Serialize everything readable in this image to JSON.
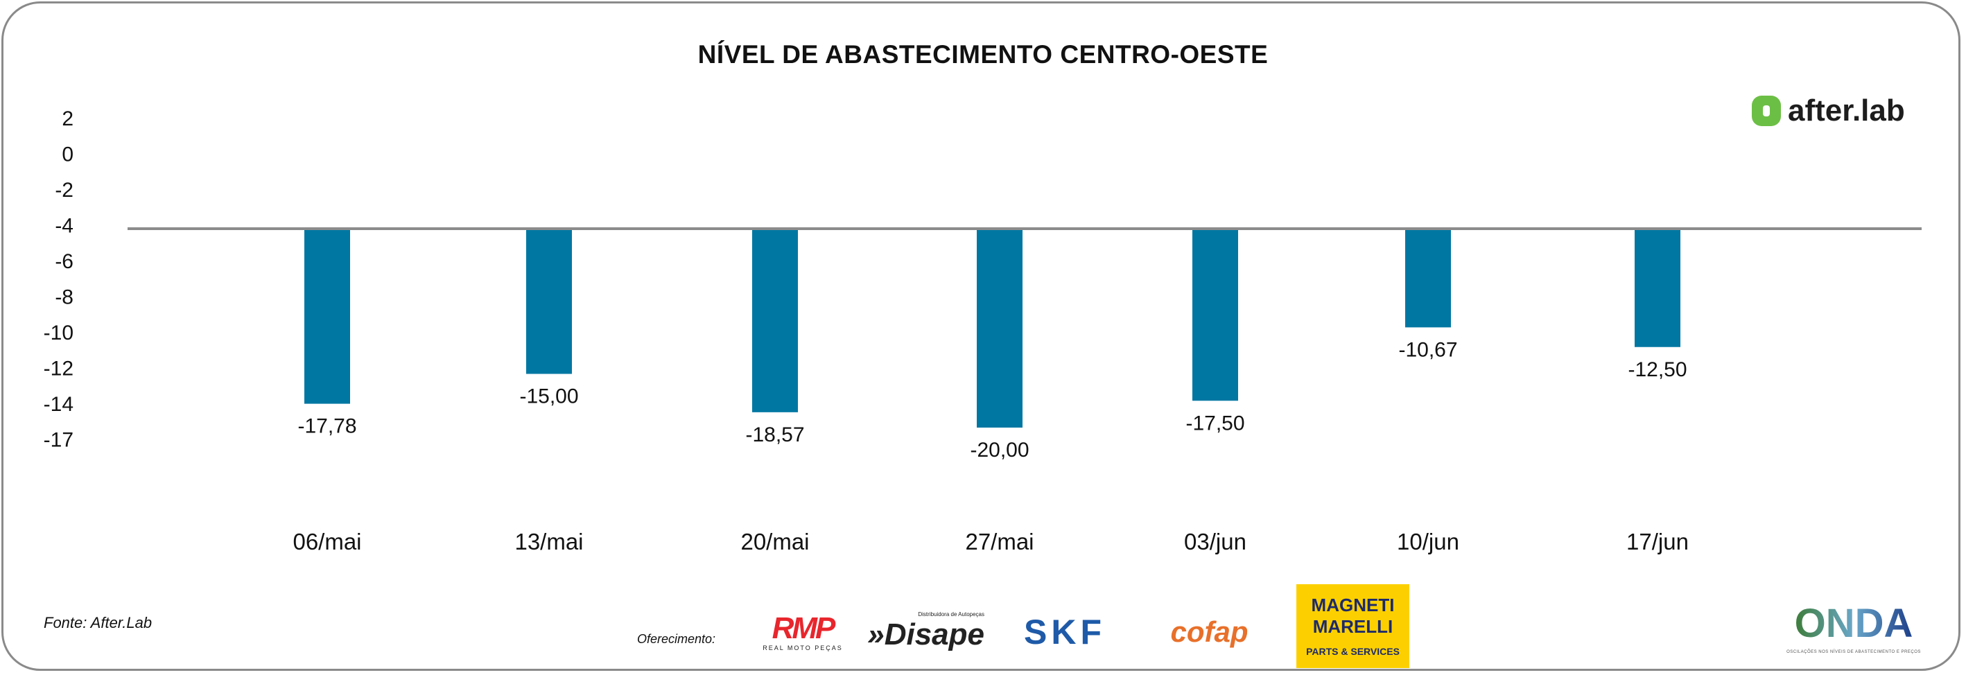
{
  "chart_data": {
    "type": "bar",
    "title": "NÍVEL DE ABASTECIMENTO CENTRO-OESTE",
    "categories": [
      "06/mai",
      "13/mai",
      "20/mai",
      "27/mai",
      "03/jun",
      "10/jun",
      "17/jun"
    ],
    "values": [
      -17.78,
      -15.0,
      -18.57,
      -20.0,
      -17.5,
      -10.67,
      -12.5
    ],
    "data_labels": [
      "-17,78",
      "-15,00",
      "-18,57",
      "-20,00",
      "-17,50",
      "-10,67",
      "-12,50"
    ],
    "y_ticks": [
      "2",
      "0",
      "-2",
      "-4",
      "-6",
      "-8",
      "-10",
      "-12",
      "-14",
      "-17"
    ],
    "xlabel": "",
    "ylabel": "",
    "baseline": -4,
    "bar_color": "#0077a3",
    "grid": false,
    "legend": "none"
  },
  "footer": {
    "source": "Fonte: After.Lab",
    "sponsor_label": "Oferecimento:"
  },
  "logos": {
    "afterlab": "after.lab",
    "rmp": "RMP",
    "rmp_sub": "REAL MOTO PEÇAS",
    "disape": "»Disape",
    "disape_sub": "Distribuidora de Autopeças",
    "skf": "SKF",
    "cofap": "cofap",
    "magneti": "MAGNETI MARELLI",
    "magneti_sub": "PARTS & SERVICES",
    "onda": "ONDA",
    "onda_sub": "OSCILAÇÕES NOS NÍVEIS DE ABASTECIMENTO E PREÇOS"
  }
}
